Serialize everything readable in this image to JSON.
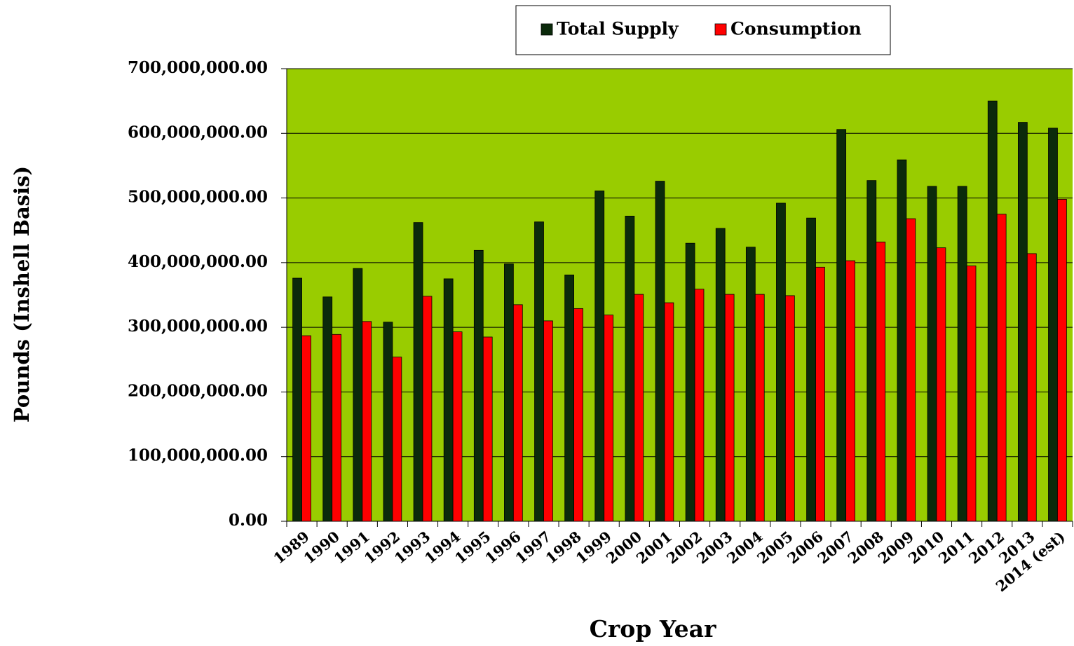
{
  "chart_data": {
    "type": "bar",
    "x_label": "Crop Year",
    "y_label": "Pounds (Inshell Basis)",
    "categories": [
      "1989",
      "1990",
      "1991",
      "1992",
      "1993",
      "1994",
      "1995",
      "1996",
      "1997",
      "1998",
      "1999",
      "2000",
      "2001",
      "2002",
      "2003",
      "2004",
      "2005",
      "2006",
      "2007",
      "2008",
      "2009",
      "2010",
      "2011",
      "2012",
      "2013",
      "2014 (est)"
    ],
    "series": [
      {
        "name": "Total Supply",
        "color": "#0b2a0b",
        "values": [
          376000000,
          347000000,
          391000000,
          308000000,
          462000000,
          375000000,
          419000000,
          398000000,
          463000000,
          381000000,
          511000000,
          472000000,
          526000000,
          430000000,
          453000000,
          424000000,
          492000000,
          469000000,
          606000000,
          527000000,
          559000000,
          518000000,
          518000000,
          650000000,
          617000000,
          608000000
        ]
      },
      {
        "name": "Consumption",
        "color": "#ff0000",
        "values": [
          287000000,
          289000000,
          309000000,
          254000000,
          348000000,
          293000000,
          285000000,
          335000000,
          310000000,
          329000000,
          319000000,
          351000000,
          338000000,
          359000000,
          351000000,
          351000000,
          349000000,
          393000000,
          403000000,
          432000000,
          468000000,
          423000000,
          395000000,
          475000000,
          414000000,
          498000000
        ]
      }
    ],
    "ylim": [
      0,
      700000000
    ],
    "yticks": [
      {
        "value": 0,
        "label": "0.00"
      },
      {
        "value": 100000000,
        "label": "100,000,000.00"
      },
      {
        "value": 200000000,
        "label": "200,000,000.00"
      },
      {
        "value": 300000000,
        "label": "300,000,000.00"
      },
      {
        "value": 400000000,
        "label": "400,000,000.00"
      },
      {
        "value": 500000000,
        "label": "500,000,000.00"
      },
      {
        "value": 600000000,
        "label": "600,000,000.00"
      },
      {
        "value": 700000000,
        "label": "700,000,000.00"
      }
    ],
    "grid": true,
    "plot_background": "#99cc00",
    "legend": "top"
  }
}
